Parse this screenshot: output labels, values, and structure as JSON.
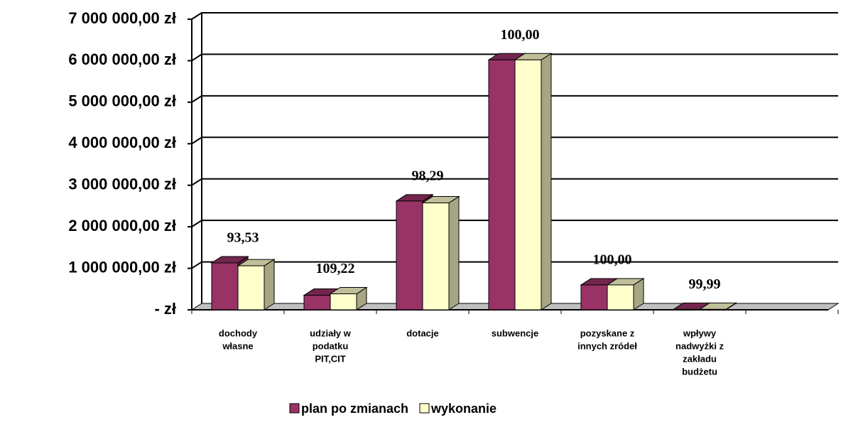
{
  "chart_data": {
    "type": "bar3d",
    "categories": [
      [
        "dochody",
        "własne"
      ],
      [
        "udziały w",
        "podatku",
        "PIT,CIT"
      ],
      [
        "dotacje"
      ],
      [
        "subwencje"
      ],
      [
        "pozyskane z",
        "innych zródeł"
      ],
      [
        "wpływy",
        "nadwyżki z",
        "zakładu",
        "budżetu"
      ],
      null
    ],
    "series": [
      {
        "name": "plan po zmianach",
        "color": "#993366",
        "values": [
          1130000,
          350000,
          2620000,
          6020000,
          600000,
          10000,
          null
        ]
      },
      {
        "name": "wykonanie",
        "color": "#FFFFCC",
        "values": [
          1060000,
          385000,
          2575000,
          6020000,
          600000,
          10000,
          null
        ]
      }
    ],
    "group_labels": [
      "93,53",
      "109,22",
      "98,29",
      "100,00",
      "100,00",
      "99,99",
      null
    ],
    "ylim": [
      0,
      7000000
    ],
    "yticks": [
      {
        "value": 0,
        "label": "-   zł"
      },
      {
        "value": 1000000,
        "label": "1 000 000,00 zł"
      },
      {
        "value": 2000000,
        "label": "2 000 000,00 zł"
      },
      {
        "value": 3000000,
        "label": "3 000 000,00 zł"
      },
      {
        "value": 4000000,
        "label": "4 000 000,00 zł"
      },
      {
        "value": 5000000,
        "label": "5 000 000,00 zł"
      },
      {
        "value": 6000000,
        "label": "6 000 000,00 zł"
      },
      {
        "value": 7000000,
        "label": "7 000 000,00 zł"
      }
    ],
    "grid": true,
    "legend": "bottom"
  }
}
